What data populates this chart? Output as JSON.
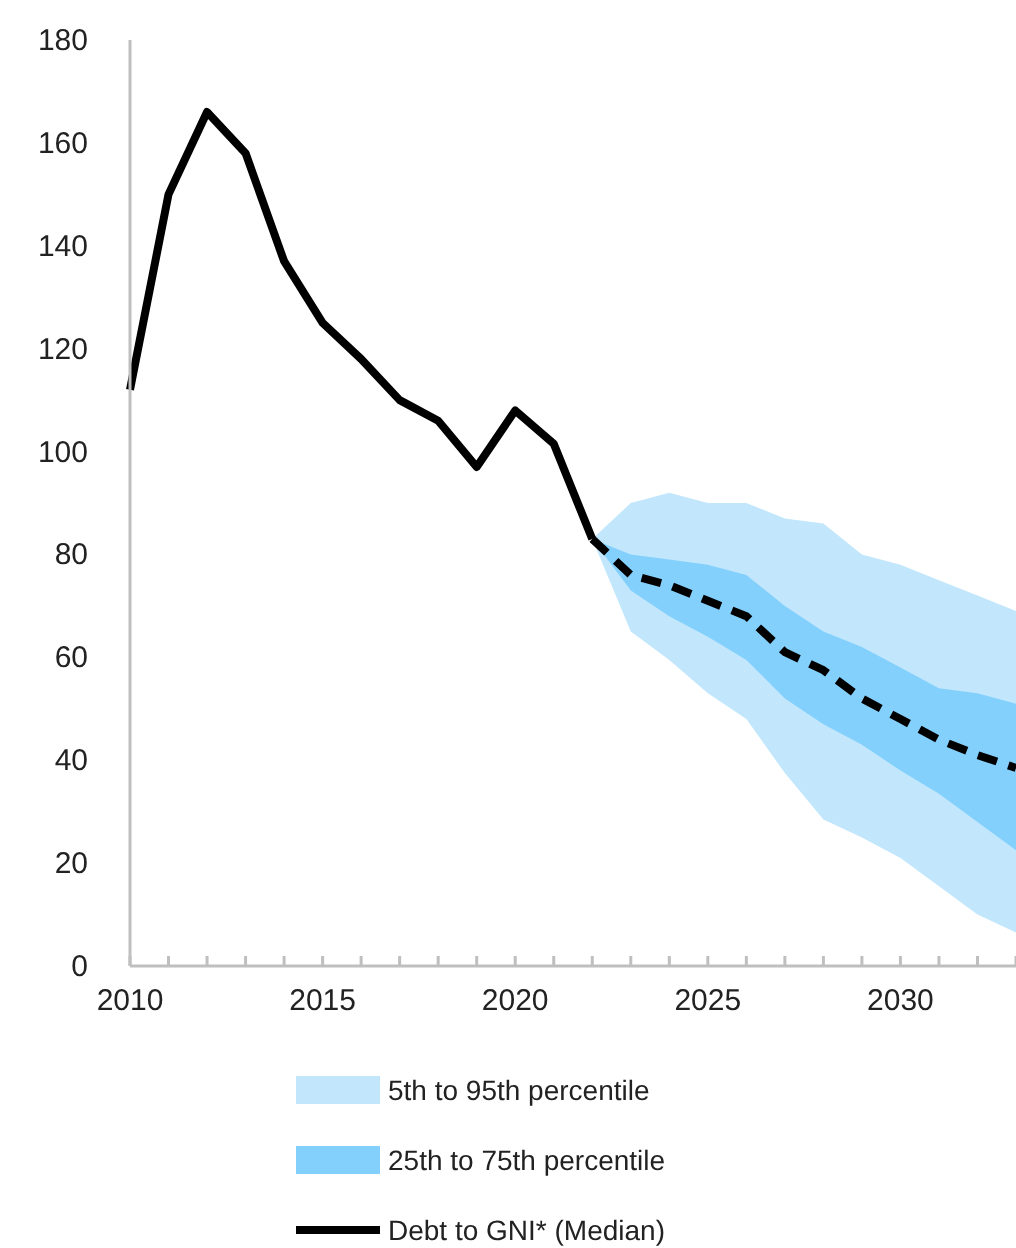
{
  "chart_data": {
    "type": "line",
    "xlim": [
      2010,
      2033
    ],
    "ylim": [
      0,
      180
    ],
    "xticks": [
      2010,
      {
        "value": 2011,
        "label": null
      },
      {
        "value": 2012,
        "label": null
      },
      {
        "value": 2013,
        "label": null
      },
      {
        "value": 2014,
        "label": null
      },
      2015,
      {
        "value": 2016,
        "label": null
      },
      {
        "value": 2017,
        "label": null
      },
      {
        "value": 2018,
        "label": null
      },
      {
        "value": 2019,
        "label": null
      },
      2020,
      {
        "value": 2021,
        "label": null
      },
      {
        "value": 2022,
        "label": null
      },
      {
        "value": 2023,
        "label": null
      },
      {
        "value": 2024,
        "label": null
      },
      2025,
      {
        "value": 2026,
        "label": null
      },
      {
        "value": 2027,
        "label": null
      },
      {
        "value": 2028,
        "label": null
      },
      {
        "value": 2029,
        "label": null
      },
      2030,
      {
        "value": 2031,
        "label": null
      },
      {
        "value": 2032,
        "label": null
      },
      {
        "value": 2033,
        "label": null
      }
    ],
    "yticks": [
      0,
      20,
      40,
      60,
      80,
      100,
      120,
      140,
      160,
      180
    ],
    "grid": false,
    "legend": "bottom",
    "series": [
      {
        "type": "area",
        "name": "5th to 95th percentile",
        "color": "#c2e7fd",
        "x": [
          2022,
          2023,
          2024,
          2025,
          2026,
          2027,
          2028,
          2029,
          2030,
          2031,
          2032,
          2033
        ],
        "values": [
          null,
          null,
          null,
          null,
          null,
          null,
          null,
          null,
          null,
          null,
          null,
          null
        ],
        "lower": [
          83,
          65,
          59.5,
          53,
          48,
          37.5,
          28.5,
          25,
          21,
          15.5,
          10,
          6.5
        ],
        "upper": [
          83,
          90,
          92,
          90,
          90,
          87,
          86,
          80,
          78,
          75,
          72,
          69
        ]
      },
      {
        "type": "area",
        "name": "25th to 75th percentile",
        "color": "#84d0fd",
        "x": [
          2022,
          2023,
          2024,
          2025,
          2026,
          2027,
          2028,
          2029,
          2030,
          2031,
          2032,
          2033
        ],
        "values": [
          null,
          null,
          null,
          null,
          null,
          null,
          null,
          null,
          null,
          null,
          null,
          null
        ],
        "lower": [
          83,
          73,
          68,
          64,
          59.5,
          52,
          47,
          43,
          38,
          33.5,
          28,
          22.5
        ],
        "upper": [
          83,
          80,
          79,
          78,
          76,
          70,
          65,
          62,
          58,
          54,
          53,
          51
        ]
      },
      {
        "name": "Debt to GNI* (Median)",
        "color": "#000000",
        "line_style": "solid",
        "x": [
          2010,
          2011,
          2012,
          2013,
          2014,
          2015,
          2016,
          2017,
          2018,
          2019,
          2020,
          2021,
          2022
        ],
        "values": [
          112,
          150,
          166,
          158,
          137,
          125,
          118,
          110,
          106,
          97,
          108,
          101.5,
          83
        ]
      },
      {
        "color": "#000000",
        "line_style": "dashed",
        "x": [
          2022,
          2023,
          2024,
          2025,
          2026,
          2027,
          2028,
          2029,
          2030,
          2031,
          2032,
          2033
        ],
        "values": [
          83,
          76,
          74,
          71,
          68,
          61,
          57.5,
          52,
          48,
          44,
          41,
          38.5
        ]
      }
    ]
  }
}
